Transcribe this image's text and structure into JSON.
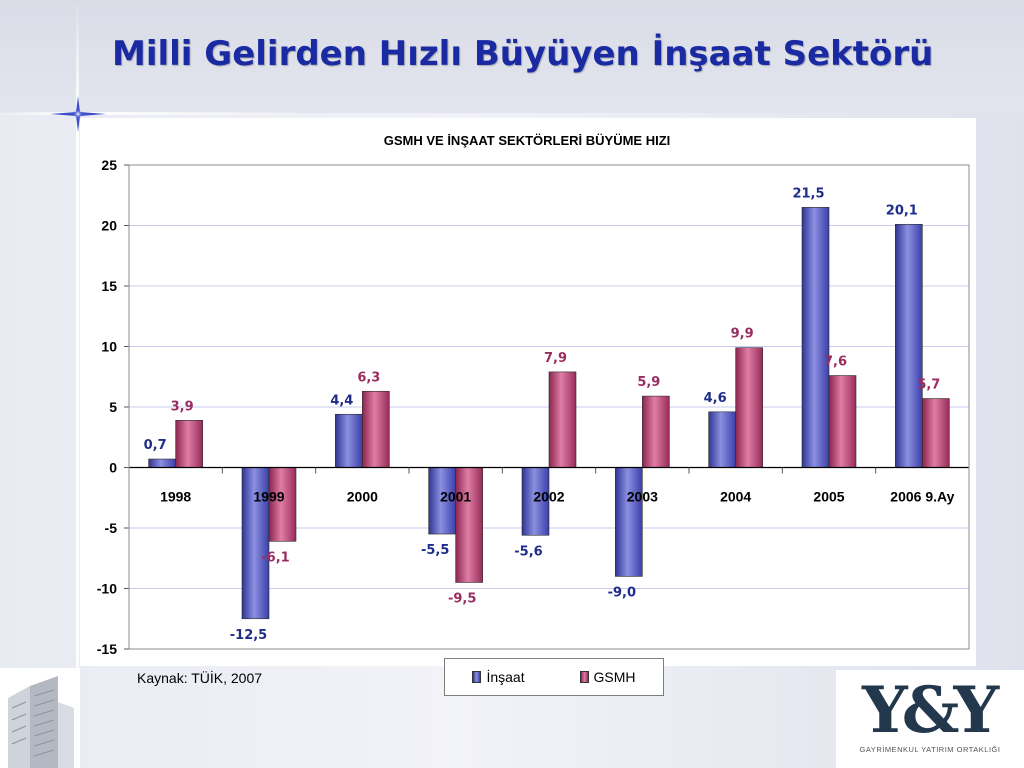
{
  "slide": {
    "title": "Milli Gelirden Hızlı Büyüyen İnşaat Sektörü",
    "source": "Kaynak: TÜİK, 2007"
  },
  "logo": {
    "mark": "Y&Y",
    "subtitle": "GAYRİMENKUL YATIRIM ORTAKLIĞI"
  },
  "legend": {
    "items": [
      {
        "label": "İnşaat",
        "color": "#5b5fc0"
      },
      {
        "label": "GSMH",
        "color": "#b6406d"
      }
    ]
  },
  "chart_data": {
    "type": "bar",
    "title": "GSMH VE İNŞAAT SEKTÖRLERİ BÜYÜME HIZI",
    "xlabel": "",
    "ylabel": "",
    "categories": [
      "1998",
      "1999",
      "2000",
      "2001",
      "2002",
      "2003",
      "2004",
      "2005",
      "2006 9.Ay"
    ],
    "series": [
      {
        "name": "İnşaat",
        "values": [
          0.7,
          -12.5,
          4.4,
          -5.5,
          -5.6,
          -9.0,
          4.6,
          21.5,
          20.1
        ],
        "labels": [
          "0,7",
          "-12,5",
          "4,4",
          "-5,5",
          "-5,6",
          "-9,0",
          "4,6",
          "21,5",
          "20,1"
        ],
        "color": "#5b5fc0",
        "label_color": "#1f2d8a"
      },
      {
        "name": "GSMH",
        "values": [
          3.9,
          -6.1,
          6.3,
          -9.5,
          7.9,
          5.9,
          9.9,
          7.6,
          5.7
        ],
        "labels": [
          "3,9",
          "-6,1",
          "6,3",
          "-9,5",
          "7,9",
          "5,9",
          "9,9",
          "7,6",
          "5,7"
        ],
        "color": "#b6406d",
        "label_color": "#9b2c5f"
      }
    ],
    "ylim": [
      -15,
      25
    ],
    "yticks": [
      "-15",
      "-10",
      "-5",
      "0",
      "5",
      "10",
      "15",
      "20",
      "25"
    ],
    "grid": true,
    "legend_position": "bottom"
  }
}
